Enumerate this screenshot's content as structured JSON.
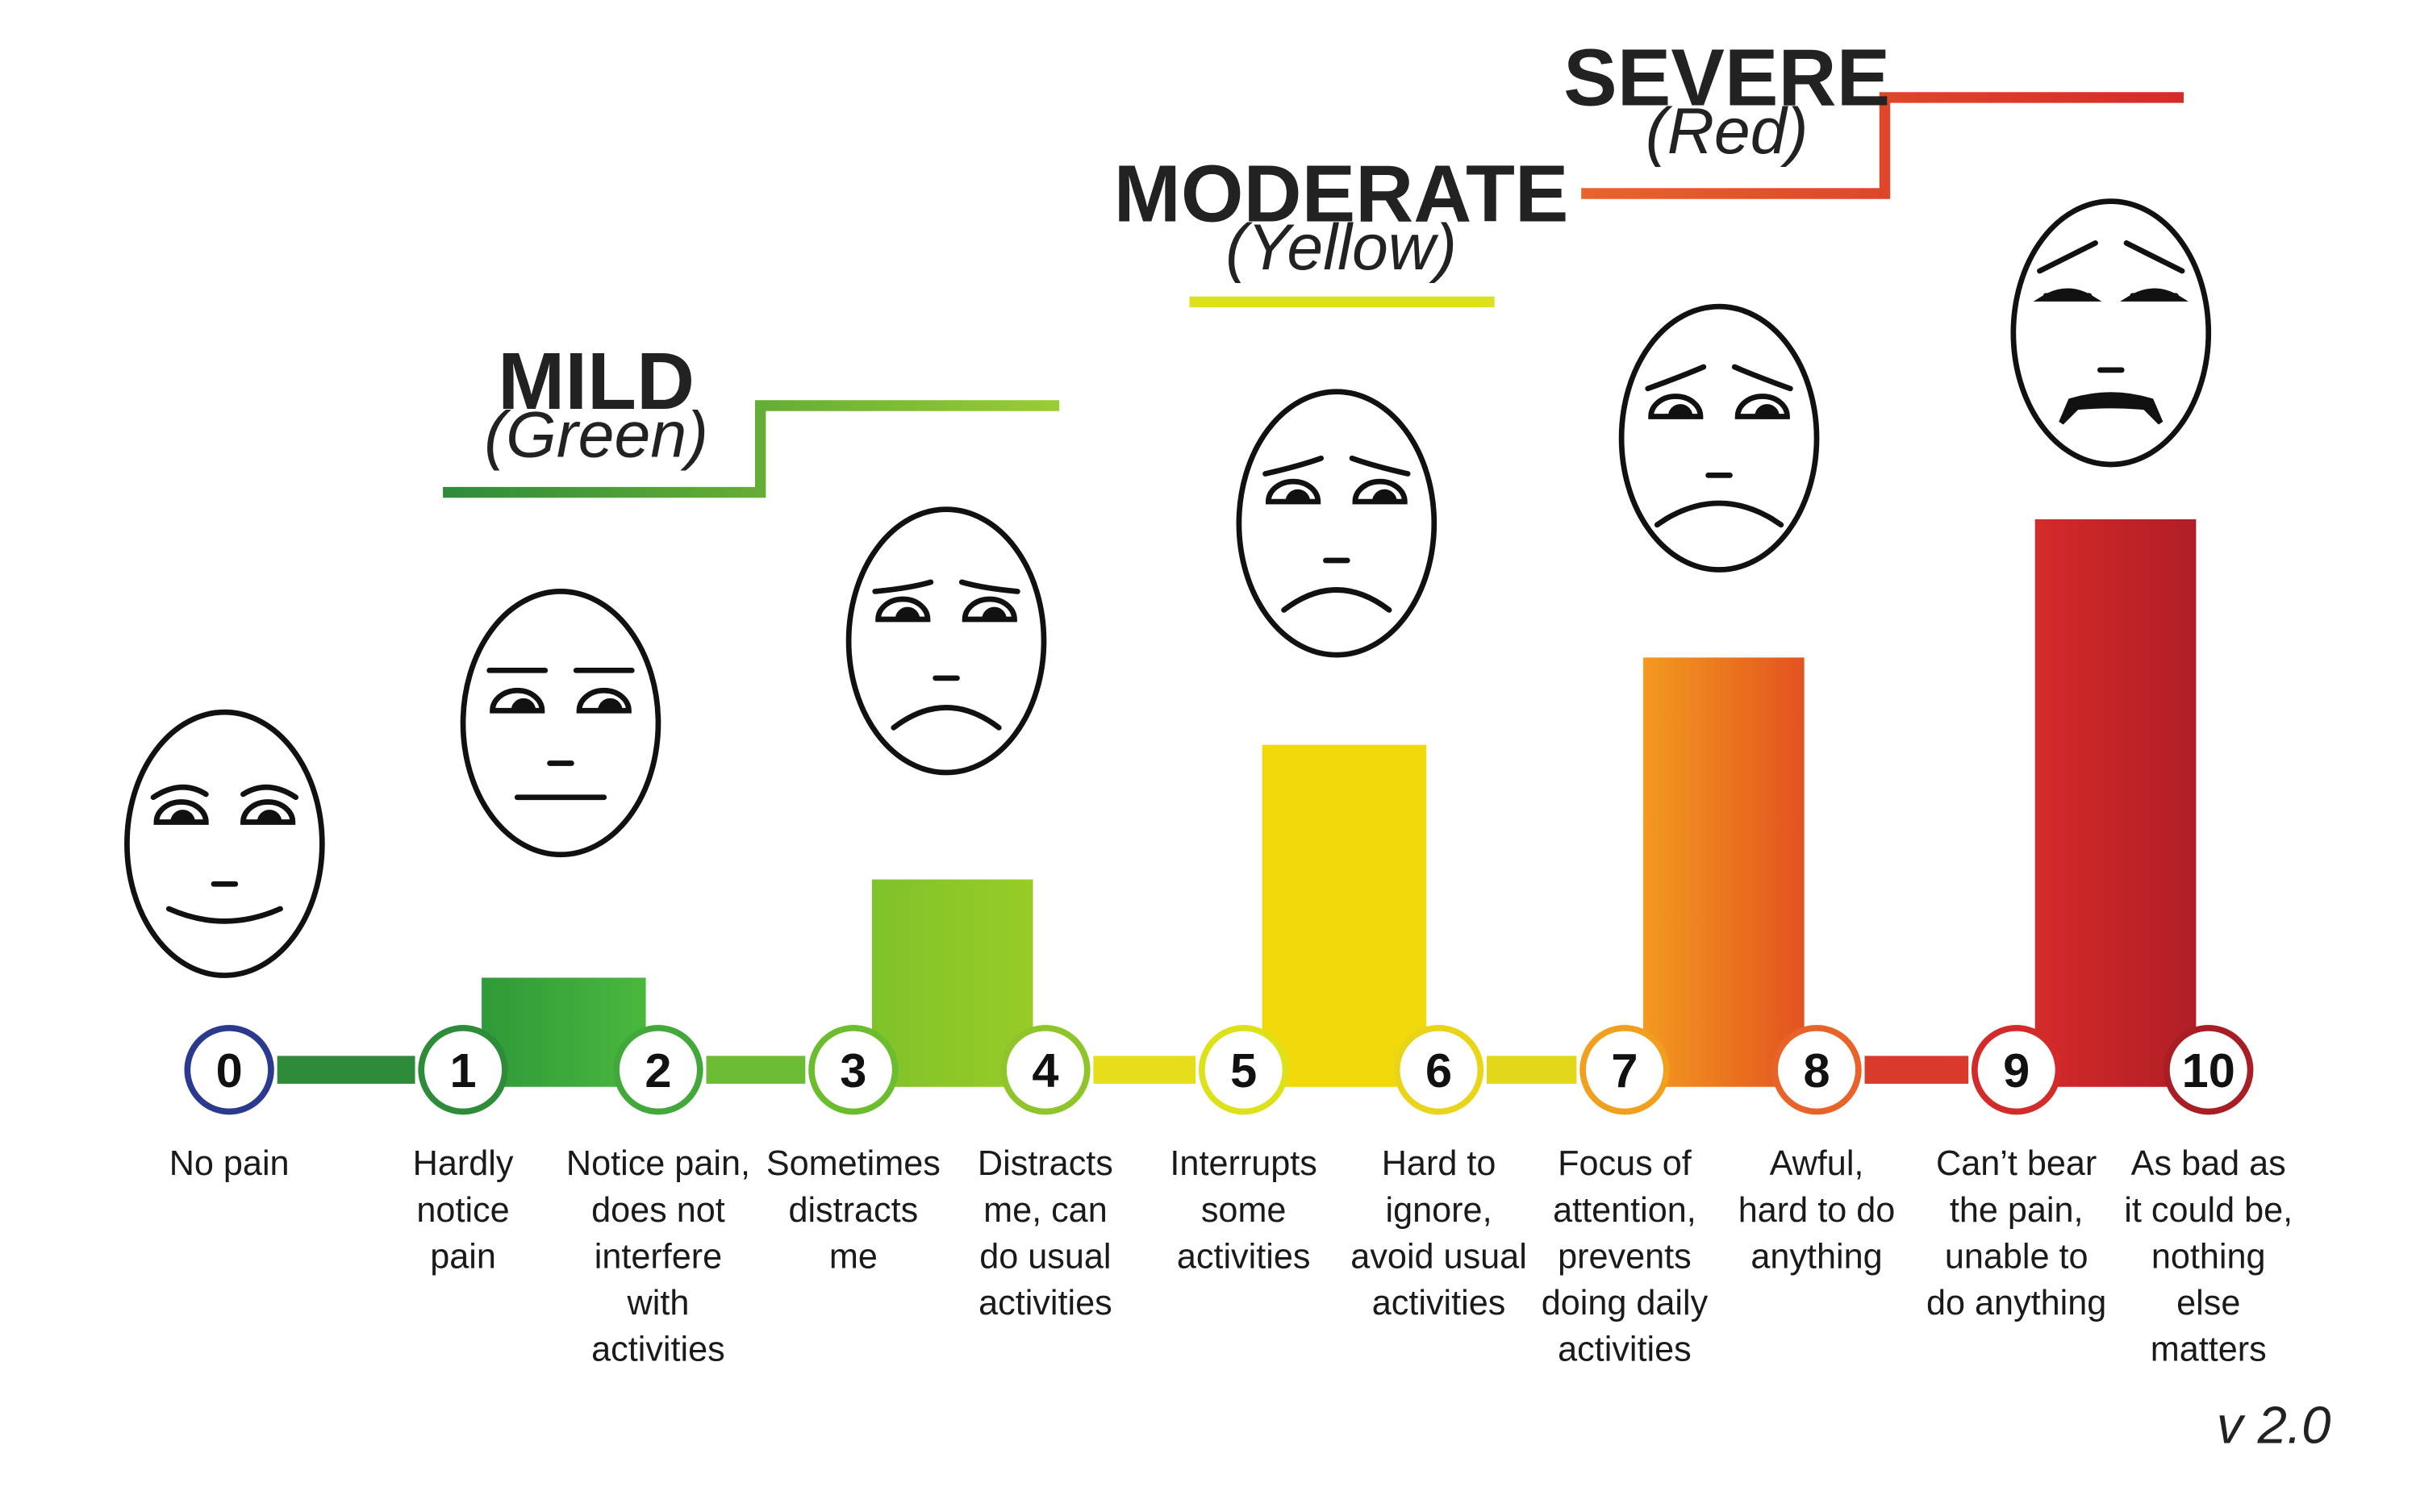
{
  "categories": [
    {
      "name": "MILD",
      "color_label": "(Green)",
      "color_start": "#2e8b3a",
      "color_end": "#9acd32"
    },
    {
      "name": "MODERATE",
      "color_label": "(Yellow)",
      "color": "#dde11a"
    },
    {
      "name": "SEVERE",
      "color_label": "(Red)",
      "color_start": "#e8632a",
      "color_end": "#d52a2a"
    }
  ],
  "scale": [
    {
      "number": "0",
      "lines": [
        "No pain"
      ],
      "color": "#2b3a8f",
      "face": "smile"
    },
    {
      "number": "1",
      "lines": [
        "Hardly",
        "notice",
        "pain"
      ],
      "color": "#2e8b3a",
      "bar_value": 1.5,
      "bar_color_start": "#2f9a39",
      "bar_color_end": "#48b83d",
      "face": "neutral"
    },
    {
      "number": "2",
      "lines": [
        "Notice pain,",
        "does not",
        "interfere",
        "with",
        "activities"
      ],
      "color": "#43a83a"
    },
    {
      "number": "3",
      "lines": [
        "Sometimes",
        "distracts",
        "me"
      ],
      "color": "#6bbd2e",
      "bar_value": 2.85,
      "bar_color_start": "#80c22a",
      "bar_color_end": "#98cc26",
      "face": "frown1"
    },
    {
      "number": "4",
      "lines": [
        "Distracts",
        "me, can",
        "do usual",
        "activities"
      ],
      "color": "#8fc42a"
    },
    {
      "number": "5",
      "lines": [
        "Interrupts",
        "some",
        "activities"
      ],
      "color": "#dde11a",
      "bar_value": 4.7,
      "bar_color_start": "#f0d80b",
      "bar_color_end": "#f0d80b",
      "face": "frown2"
    },
    {
      "number": "6",
      "lines": [
        "Hard to",
        "ignore,",
        "avoid usual",
        "activities"
      ],
      "color": "#e8d51a"
    },
    {
      "number": "7",
      "lines": [
        "Focus of",
        "attention,",
        "prevents",
        "doing daily",
        "activities"
      ],
      "color": "#f0a01e",
      "bar_value": 5.9,
      "bar_color_start": "#f39a1f",
      "bar_color_end": "#e2531f",
      "face": "frown3"
    },
    {
      "number": "8",
      "lines": [
        "Awful,",
        "hard to do",
        "anything"
      ],
      "color": "#e8632a"
    },
    {
      "number": "9",
      "lines": [
        "Can’t bear",
        "the pain,",
        "unable to",
        "do anything"
      ],
      "color": "#d32a2a",
      "bar_value": 7.8,
      "bar_color_start": "#d52a2a",
      "bar_color_end": "#b01e25",
      "face": "frown4"
    },
    {
      "number": "10",
      "lines": [
        "As bad as",
        "it could be,",
        "nothing",
        "else",
        "matters"
      ],
      "color": "#a81e25"
    }
  ],
  "connector_colors": [
    "#2e8b3a",
    "#6cbd35",
    "#e6de1a",
    "#e2d81a",
    "#d93a2a"
  ],
  "version": "v 2.0"
}
